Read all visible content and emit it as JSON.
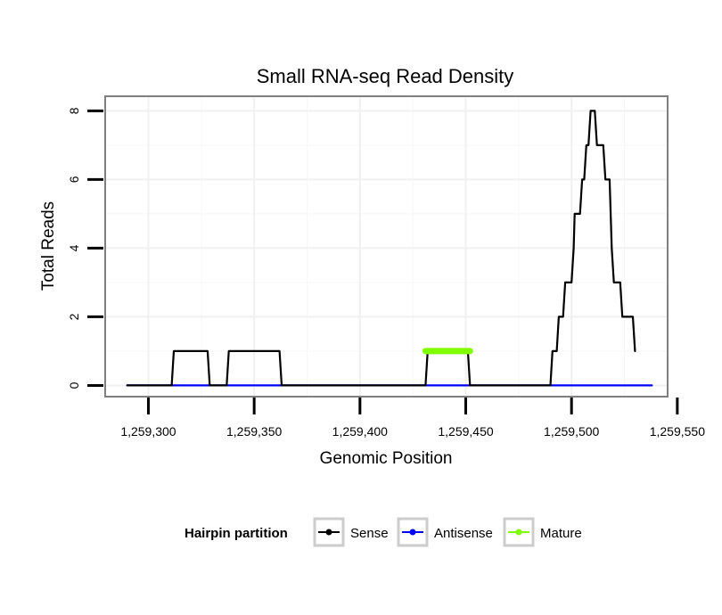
{
  "chart_data": {
    "type": "line",
    "title": "Small RNA-seq Read Density",
    "xlabel": "Genomic Position",
    "ylabel": "Total Reads",
    "xlim": [
      1259280,
      1259545
    ],
    "ylim": [
      -0.3,
      8.4
    ],
    "x_ticks": [
      1259300,
      1259350,
      1259400,
      1259450,
      1259500,
      1259550
    ],
    "x_tick_labels": [
      "1,259,300",
      "1,259,350",
      "1,259,400",
      "1,259,450",
      "1,259,500",
      "1,259,550"
    ],
    "y_ticks": [
      0,
      2,
      4,
      6,
      8
    ],
    "y_tick_labels": [
      "0",
      "2",
      "4",
      "6",
      "8"
    ],
    "grid": true,
    "legend": {
      "title": "Hairpin partition",
      "position": "bottom",
      "entries": [
        "Sense",
        "Antisense",
        "Mature"
      ]
    },
    "series": [
      {
        "name": "Sense",
        "color": "#000000",
        "points": [
          [
            1259290,
            0
          ],
          [
            1259311,
            0
          ],
          [
            1259312,
            1
          ],
          [
            1259328,
            1
          ],
          [
            1259329,
            0
          ],
          [
            1259337,
            0
          ],
          [
            1259338,
            1
          ],
          [
            1259362,
            1
          ],
          [
            1259363,
            0
          ],
          [
            1259431,
            0
          ],
          [
            1259432,
            1
          ],
          [
            1259451,
            1
          ],
          [
            1259452,
            0
          ],
          [
            1259490,
            0
          ],
          [
            1259491,
            1
          ],
          [
            1259493,
            1
          ],
          [
            1259494,
            2
          ],
          [
            1259496,
            2
          ],
          [
            1259497,
            3
          ],
          [
            1259500,
            3
          ],
          [
            1259501,
            4
          ],
          [
            1259501.5,
            5
          ],
          [
            1259504,
            5
          ],
          [
            1259505,
            6
          ],
          [
            1259506,
            6
          ],
          [
            1259507,
            7
          ],
          [
            1259508,
            7
          ],
          [
            1259509,
            8
          ],
          [
            1259511,
            8
          ],
          [
            1259512,
            7
          ],
          [
            1259515,
            7
          ],
          [
            1259516,
            6
          ],
          [
            1259518,
            6
          ],
          [
            1259519,
            4
          ],
          [
            1259520,
            3
          ],
          [
            1259523,
            3
          ],
          [
            1259524,
            2
          ],
          [
            1259529,
            2
          ],
          [
            1259530,
            1
          ]
        ]
      },
      {
        "name": "Antisense",
        "color": "#0000ff",
        "points": [
          [
            1259290,
            0
          ],
          [
            1259538,
            0
          ]
        ]
      },
      {
        "name": "Mature",
        "color": "#7fff00",
        "points": [
          [
            1259431,
            1
          ],
          [
            1259452,
            1
          ]
        ]
      }
    ]
  }
}
